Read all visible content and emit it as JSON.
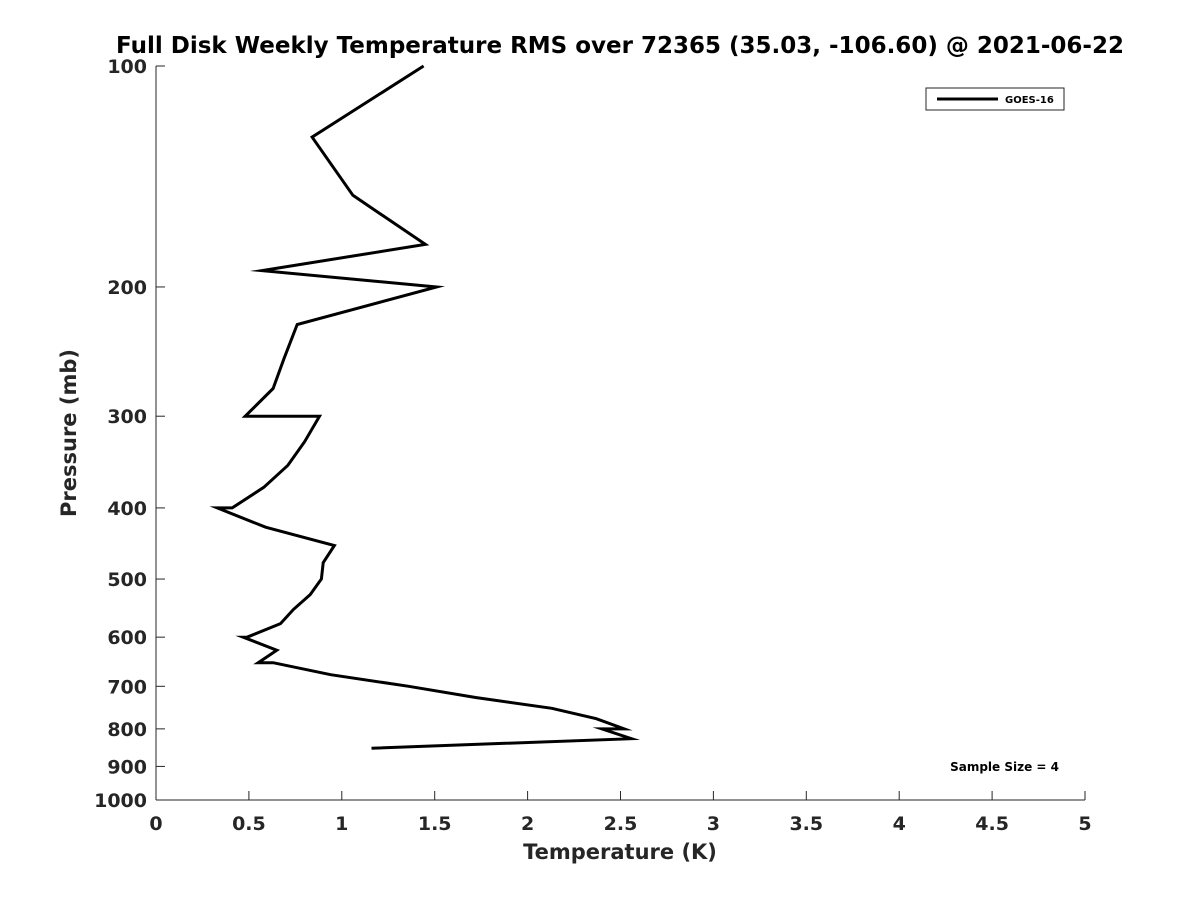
{
  "chart_data": {
    "type": "line",
    "title": "Full Disk Weekly Temperature RMS over 72365 (35.03, -106.60) @ 2021-06-22",
    "xlabel": "Temperature (K)",
    "ylabel": "Pressure (mb)",
    "xlim": [
      0,
      5
    ],
    "ylim": [
      100,
      1000
    ],
    "y_scale": "log",
    "y_reversed": true,
    "x_ticks": [
      "0",
      "0.5",
      "1",
      "1.5",
      "2",
      "2.5",
      "3",
      "3.5",
      "4",
      "4.5",
      "5"
    ],
    "y_ticks": [
      "100",
      "200",
      "300",
      "400",
      "500",
      "600",
      "700",
      "800",
      "900",
      "1000"
    ],
    "grid": false,
    "legend_position": "top-right",
    "annotation": "Sample Size = 4",
    "series": [
      {
        "name": "GOES-16",
        "color": "#000000",
        "x": [
          1.44,
          0.84,
          1.06,
          1.45,
          0.57,
          1.51,
          0.76,
          0.69,
          0.63,
          0.48,
          0.88,
          0.8,
          0.71,
          0.58,
          0.41,
          0.33,
          0.59,
          0.96,
          0.9,
          0.89,
          0.83,
          0.74,
          0.67,
          0.49,
          0.47,
          0.65,
          0.55,
          0.63,
          0.94,
          1.36,
          1.72,
          2.13,
          2.37,
          2.52,
          2.4,
          2.56,
          1.16
        ],
        "y": [
          100,
          125,
          150,
          175,
          190,
          200,
          225,
          250,
          275,
          300,
          300,
          325,
          350,
          375,
          400,
          400,
          425,
          450,
          475,
          500,
          525,
          550,
          575,
          600,
          600,
          625,
          650,
          650,
          675,
          700,
          725,
          750,
          775,
          800,
          800,
          825,
          850
        ]
      }
    ]
  }
}
